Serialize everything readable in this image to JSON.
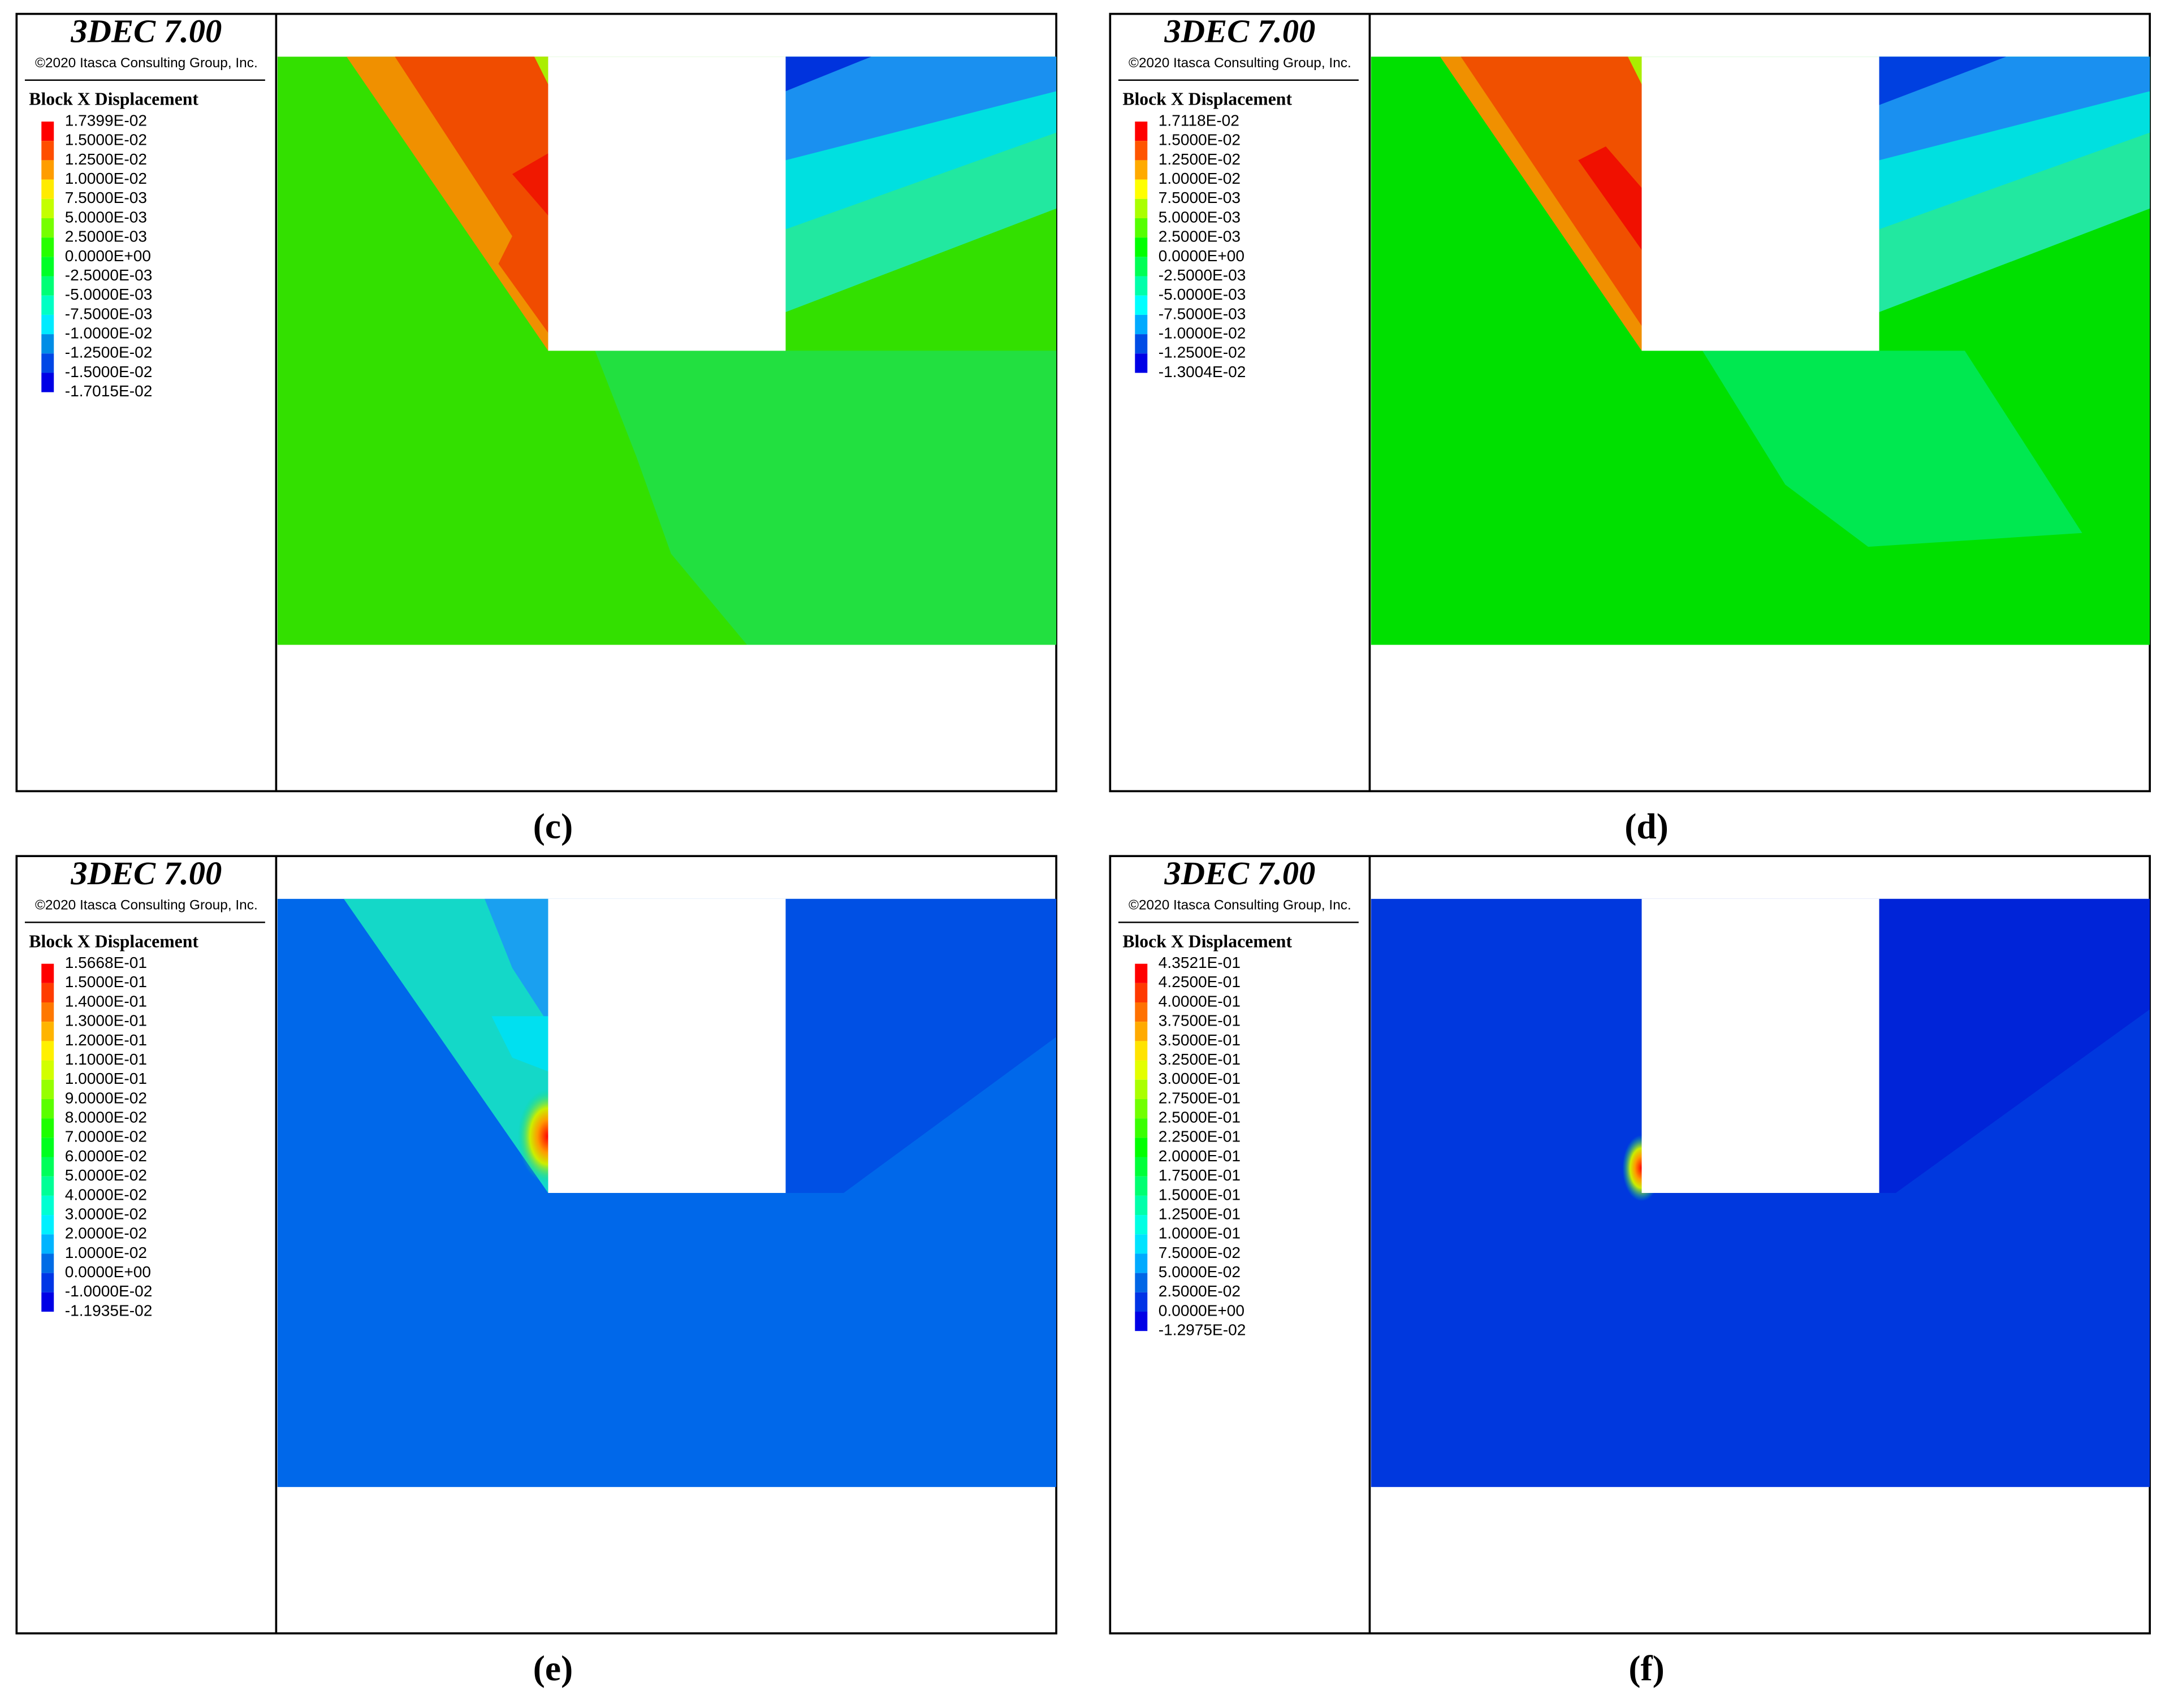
{
  "panels": [
    {
      "label": "(c)",
      "software": "3DEC 7.00",
      "copyright": "©2020 Itasca Consulting Group, Inc.",
      "legend_title": "Block X Displacement",
      "legend": [
        "1.7399E-02",
        "1.5000E-02",
        "1.2500E-02",
        "1.0000E-02",
        "7.5000E-03",
        "5.0000E-03",
        "2.5000E-03",
        "0.0000E+00",
        "-2.5000E-03",
        "-5.0000E-03",
        "-7.5000E-03",
        "-1.0000E-02",
        "-1.2500E-02",
        "-1.5000E-02",
        "-1.7015E-02"
      ]
    },
    {
      "label": "(d)",
      "software": "3DEC 7.00",
      "copyright": "©2020 Itasca Consulting Group, Inc.",
      "legend_title": "Block X Displacement",
      "legend": [
        "1.7118E-02",
        "1.5000E-02",
        "1.2500E-02",
        "1.0000E-02",
        "7.5000E-03",
        "5.0000E-03",
        "2.5000E-03",
        "0.0000E+00",
        "-2.5000E-03",
        "-5.0000E-03",
        "-7.5000E-03",
        "-1.0000E-02",
        "-1.2500E-02",
        "-1.3004E-02"
      ]
    },
    {
      "label": "(e)",
      "software": "3DEC 7.00",
      "copyright": "©2020 Itasca Consulting Group, Inc.",
      "legend_title": "Block X Displacement",
      "legend": [
        "1.5668E-01",
        "1.5000E-01",
        "1.4000E-01",
        "1.3000E-01",
        "1.2000E-01",
        "1.1000E-01",
        "1.0000E-01",
        "9.0000E-02",
        "8.0000E-02",
        "7.0000E-02",
        "6.0000E-02",
        "5.0000E-02",
        "4.0000E-02",
        "3.0000E-02",
        "2.0000E-02",
        "1.0000E-02",
        "0.0000E+00",
        "-1.0000E-02",
        "-1.1935E-02"
      ]
    },
    {
      "label": "(f)",
      "software": "3DEC 7.00",
      "copyright": "©2020 Itasca Consulting Group, Inc.",
      "legend_title": "Block X Displacement",
      "legend": [
        "4.3521E-01",
        "4.2500E-01",
        "4.0000E-01",
        "3.7500E-01",
        "3.5000E-01",
        "3.2500E-01",
        "3.0000E-01",
        "2.7500E-01",
        "2.5000E-01",
        "2.2500E-01",
        "2.0000E-01",
        "1.7500E-01",
        "1.5000E-01",
        "1.2500E-01",
        "1.0000E-01",
        "7.5000E-02",
        "5.0000E-02",
        "2.5000E-02",
        "0.0000E+00",
        "-1.2975E-02"
      ]
    }
  ]
}
